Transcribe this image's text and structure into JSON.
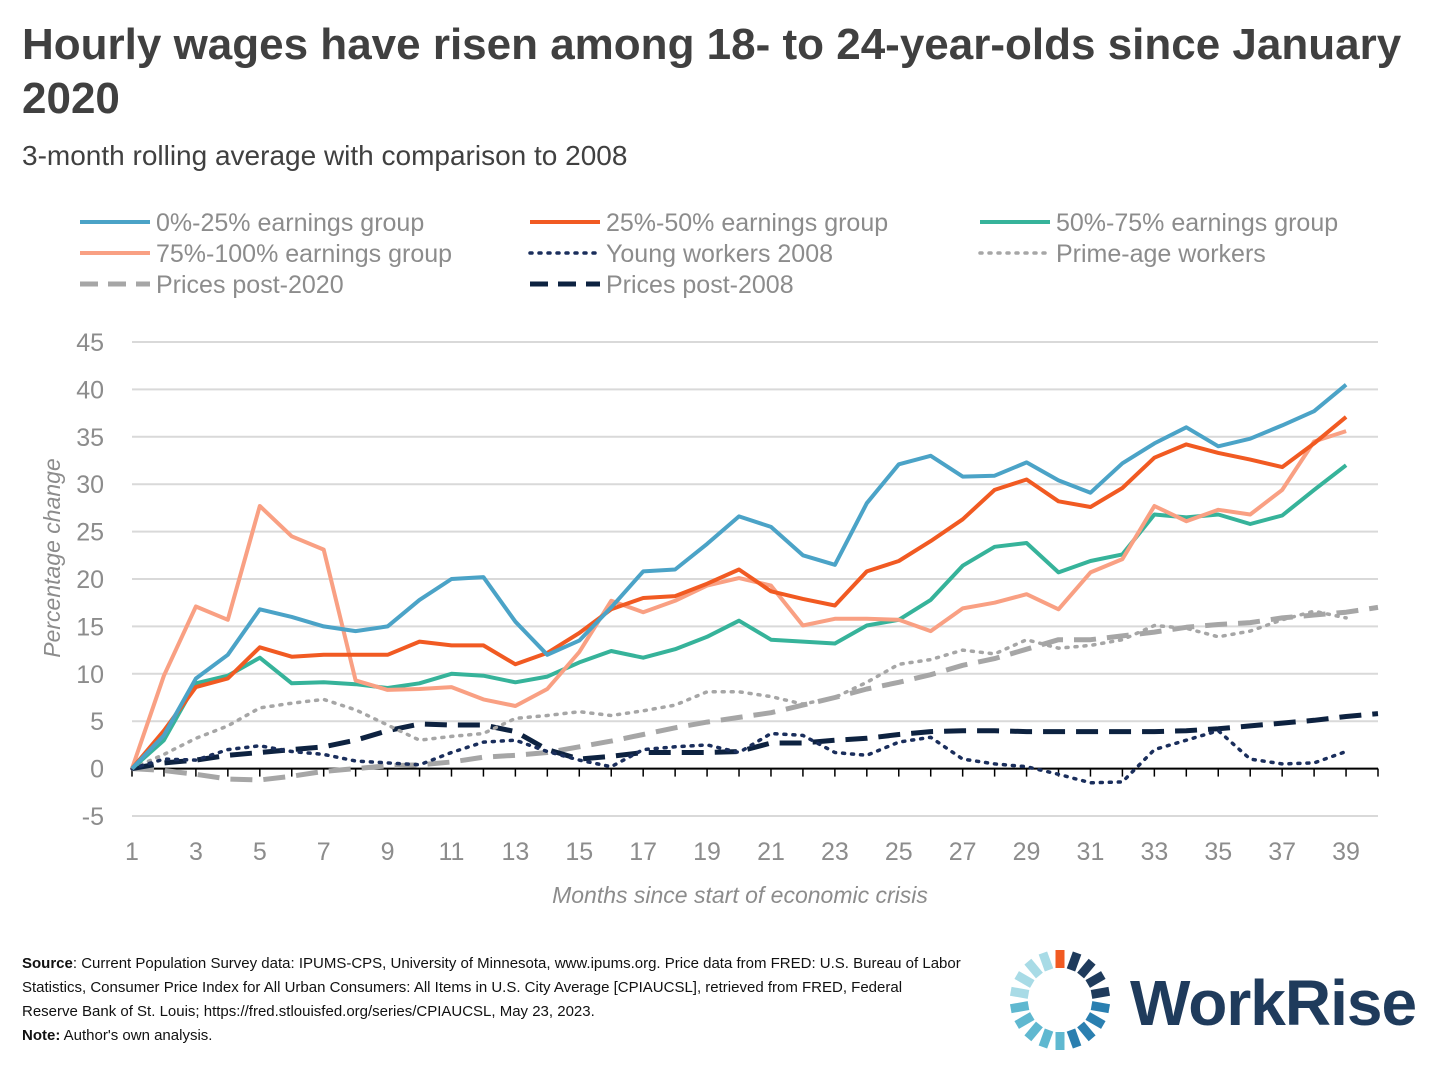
{
  "title": "Hourly wages have risen among 18- to 24-year-olds since January 2020",
  "subtitle": "3-month rolling average with comparison to 2008",
  "source": {
    "label": "Source",
    "text": ": Current Population Survey data: IPUMS-CPS, University of Minnesota, www.ipums.org. Price data from FRED: U.S. Bureau of Labor Statistics, Consumer Price Index for All Urban Consumers: All Items in U.S. City Average [CPIAUCSL], retrieved from FRED, Federal Reserve Bank of St. Louis; https://fred.stlouisfed.org/series/CPIAUCSL, May 23, 2023.",
    "note_label": "Note:",
    "note_text": " Author's own analysis."
  },
  "logo": {
    "text": "WorkRise",
    "icon": "workrise-sunburst-icon",
    "accent": "#f15a22",
    "colors": [
      "#1f3b5c",
      "#2a7fb0",
      "#5fb8d0",
      "#a8dbe6"
    ]
  },
  "chart_data": {
    "type": "line",
    "xlabel": "Months since start of economic crisis",
    "ylabel": "Percentage change",
    "xlim": [
      1,
      40
    ],
    "ylim": [
      -5,
      45
    ],
    "yticks": [
      -5,
      0,
      5,
      10,
      15,
      20,
      25,
      30,
      35,
      40,
      45
    ],
    "xticks": [
      1,
      3,
      5,
      7,
      9,
      11,
      13,
      15,
      17,
      19,
      21,
      23,
      25,
      27,
      29,
      31,
      33,
      35,
      37,
      39
    ],
    "grid": true,
    "legend_position": "top",
    "series": [
      {
        "name": "0%-25% earnings group",
        "color": "#4ba3c7",
        "style": "solid",
        "x": [
          1,
          2,
          3,
          4,
          5,
          6,
          7,
          8,
          9,
          10,
          11,
          12,
          13,
          14,
          15,
          16,
          17,
          18,
          19,
          20,
          21,
          22,
          23,
          24,
          25,
          26,
          27,
          28,
          29,
          30,
          31,
          32,
          33,
          34,
          35,
          36,
          37,
          38,
          39
        ],
        "y": [
          0,
          3.5,
          9.5,
          12,
          16.8,
          16,
          15,
          14.5,
          15,
          17.8,
          20,
          20.2,
          15.5,
          12,
          13.5,
          17,
          20.8,
          21,
          23.7,
          26.6,
          25.5,
          22.5,
          21.5,
          28,
          32.1,
          33,
          30.8,
          30.9,
          32.3,
          30.4,
          29.1,
          32.2,
          34.3,
          36,
          34,
          34.8,
          36.2,
          37.7,
          40.5
        ]
      },
      {
        "name": "25%-50% earnings group",
        "color": "#f15a22",
        "style": "solid",
        "x": [
          1,
          2,
          3,
          4,
          5,
          6,
          7,
          8,
          9,
          10,
          11,
          12,
          13,
          14,
          15,
          16,
          17,
          18,
          19,
          20,
          21,
          22,
          23,
          24,
          25,
          26,
          27,
          28,
          29,
          30,
          31,
          32,
          33,
          34,
          35,
          36,
          37,
          38,
          39
        ],
        "y": [
          0,
          4,
          8.6,
          9.5,
          12.8,
          11.8,
          12,
          12,
          12,
          13.4,
          13,
          13,
          11,
          12.2,
          14.3,
          16.8,
          18,
          18.2,
          19.5,
          21,
          18.7,
          17.9,
          17.2,
          20.8,
          21.9,
          24,
          26.3,
          29.4,
          30.5,
          28.2,
          27.6,
          29.6,
          32.8,
          34.2,
          33.3,
          32.6,
          31.8,
          34.3,
          37.1
        ]
      },
      {
        "name": "50%-75% earnings group",
        "color": "#36b39a",
        "style": "solid",
        "x": [
          1,
          2,
          3,
          4,
          5,
          6,
          7,
          8,
          9,
          10,
          11,
          12,
          13,
          14,
          15,
          16,
          17,
          18,
          19,
          20,
          21,
          22,
          23,
          24,
          25,
          26,
          27,
          28,
          29,
          30,
          31,
          32,
          33,
          34,
          35,
          36,
          37,
          38,
          39
        ],
        "y": [
          0,
          3,
          9,
          9.8,
          11.7,
          9,
          9.1,
          8.9,
          8.5,
          9,
          10,
          9.8,
          9.1,
          9.7,
          11.2,
          12.4,
          11.7,
          12.6,
          13.9,
          15.6,
          13.6,
          13.4,
          13.2,
          15.1,
          15.7,
          17.8,
          21.4,
          23.4,
          23.8,
          20.7,
          21.9,
          22.6,
          26.8,
          26.5,
          26.8,
          25.8,
          26.7,
          29.4,
          32
        ]
      },
      {
        "name": "75%-100% earnings group",
        "color": "#f9a083",
        "style": "solid",
        "x": [
          1,
          2,
          3,
          4,
          5,
          6,
          7,
          8,
          9,
          10,
          11,
          12,
          13,
          14,
          15,
          16,
          17,
          18,
          19,
          20,
          21,
          22,
          23,
          24,
          25,
          26,
          27,
          28,
          29,
          30,
          31,
          32,
          33,
          34,
          35,
          36,
          37,
          38,
          39
        ],
        "y": [
          0,
          9.8,
          17.1,
          15.7,
          27.7,
          24.5,
          23.1,
          9.3,
          8.3,
          8.4,
          8.6,
          7.3,
          6.6,
          8.4,
          12.3,
          17.7,
          16.5,
          17.7,
          19.3,
          20.1,
          19.3,
          15.1,
          15.8,
          15.8,
          15.7,
          14.5,
          16.9,
          17.5,
          18.4,
          16.8,
          20.7,
          22.1,
          27.7,
          26.1,
          27.3,
          26.8,
          29.4,
          34.5,
          35.6
        ]
      },
      {
        "name": "Young workers 2008",
        "color": "#1a2e5c",
        "style": "dotted",
        "x": [
          1,
          2,
          3,
          4,
          5,
          6,
          7,
          8,
          9,
          10,
          11,
          12,
          13,
          14,
          15,
          16,
          17,
          18,
          19,
          20,
          21,
          22,
          23,
          24,
          25,
          26,
          27,
          28,
          29,
          30,
          31,
          32,
          33,
          34,
          35,
          36,
          37,
          38,
          39
        ],
        "y": [
          0,
          1,
          0.9,
          2,
          2.4,
          1.8,
          1.5,
          0.8,
          0.6,
          0.4,
          1.7,
          2.8,
          3,
          1.8,
          0.9,
          0.2,
          2,
          2.3,
          2.5,
          1.7,
          3.7,
          3.5,
          1.7,
          1.4,
          2.8,
          3.3,
          1,
          0.5,
          0.2,
          -0.6,
          -1.5,
          -1.4,
          2,
          3,
          4,
          1,
          0.5,
          0.6,
          1.8
        ]
      },
      {
        "name": "Prime-age workers",
        "color": "#a6a6a6",
        "style": "dotted",
        "x": [
          1,
          2,
          3,
          4,
          5,
          6,
          7,
          8,
          9,
          10,
          11,
          12,
          13,
          14,
          15,
          16,
          17,
          18,
          19,
          20,
          21,
          22,
          23,
          24,
          25,
          26,
          27,
          28,
          29,
          30,
          31,
          32,
          33,
          34,
          35,
          36,
          37,
          38,
          39
        ],
        "y": [
          0,
          1.5,
          3.2,
          4.5,
          6.4,
          6.9,
          7.3,
          6.2,
          4.6,
          3,
          3.4,
          3.7,
          5.3,
          5.6,
          6,
          5.6,
          6.1,
          6.7,
          8.1,
          8.1,
          7.6,
          6.8,
          7.5,
          9.1,
          11,
          11.5,
          12.5,
          12.1,
          13.6,
          12.7,
          13,
          13.6,
          15.1,
          14.8,
          13.9,
          14.5,
          15.7,
          16.6,
          15.9
        ]
      },
      {
        "name": "Prices post-2020",
        "color": "#a6a6a6",
        "style": "dashed",
        "x": [
          1,
          2,
          3,
          4,
          5,
          6,
          7,
          8,
          9,
          10,
          11,
          12,
          13,
          14,
          15,
          16,
          17,
          18,
          19,
          20,
          21,
          22,
          23,
          24,
          25,
          26,
          27,
          28,
          29,
          30,
          31,
          32,
          33,
          34,
          35,
          36,
          37,
          38,
          39,
          40
        ],
        "y": [
          0,
          -0.2,
          -0.6,
          -1.1,
          -1.2,
          -0.8,
          -0.3,
          0,
          0.3,
          0.4,
          0.7,
          1.2,
          1.4,
          1.7,
          2.3,
          2.9,
          3.6,
          4.3,
          4.9,
          5.4,
          5.9,
          6.7,
          7.5,
          8.4,
          9.1,
          9.9,
          10.9,
          11.6,
          12.6,
          13.6,
          13.6,
          14,
          14.4,
          14.9,
          15.2,
          15.4,
          15.9,
          16.2,
          16.5,
          17
        ]
      },
      {
        "name": "Prices post-2008",
        "color": "#0d2240",
        "style": "dashed",
        "x": [
          1,
          2,
          3,
          4,
          5,
          6,
          7,
          8,
          9,
          10,
          11,
          12,
          13,
          14,
          15,
          16,
          17,
          18,
          19,
          20,
          21,
          22,
          23,
          24,
          25,
          26,
          27,
          28,
          29,
          30,
          31,
          32,
          33,
          34,
          35,
          36,
          37,
          38,
          39,
          40
        ],
        "y": [
          0,
          0.6,
          0.9,
          1.4,
          1.7,
          2,
          2.3,
          3,
          4,
          4.7,
          4.6,
          4.6,
          3.9,
          2,
          1,
          1.3,
          1.7,
          1.7,
          1.7,
          1.8,
          2.7,
          2.7,
          3,
          3.2,
          3.6,
          3.9,
          4,
          4,
          3.9,
          3.9,
          3.9,
          3.9,
          3.9,
          4,
          4.2,
          4.5,
          4.8,
          5.1,
          5.5,
          5.8
        ]
      }
    ]
  }
}
